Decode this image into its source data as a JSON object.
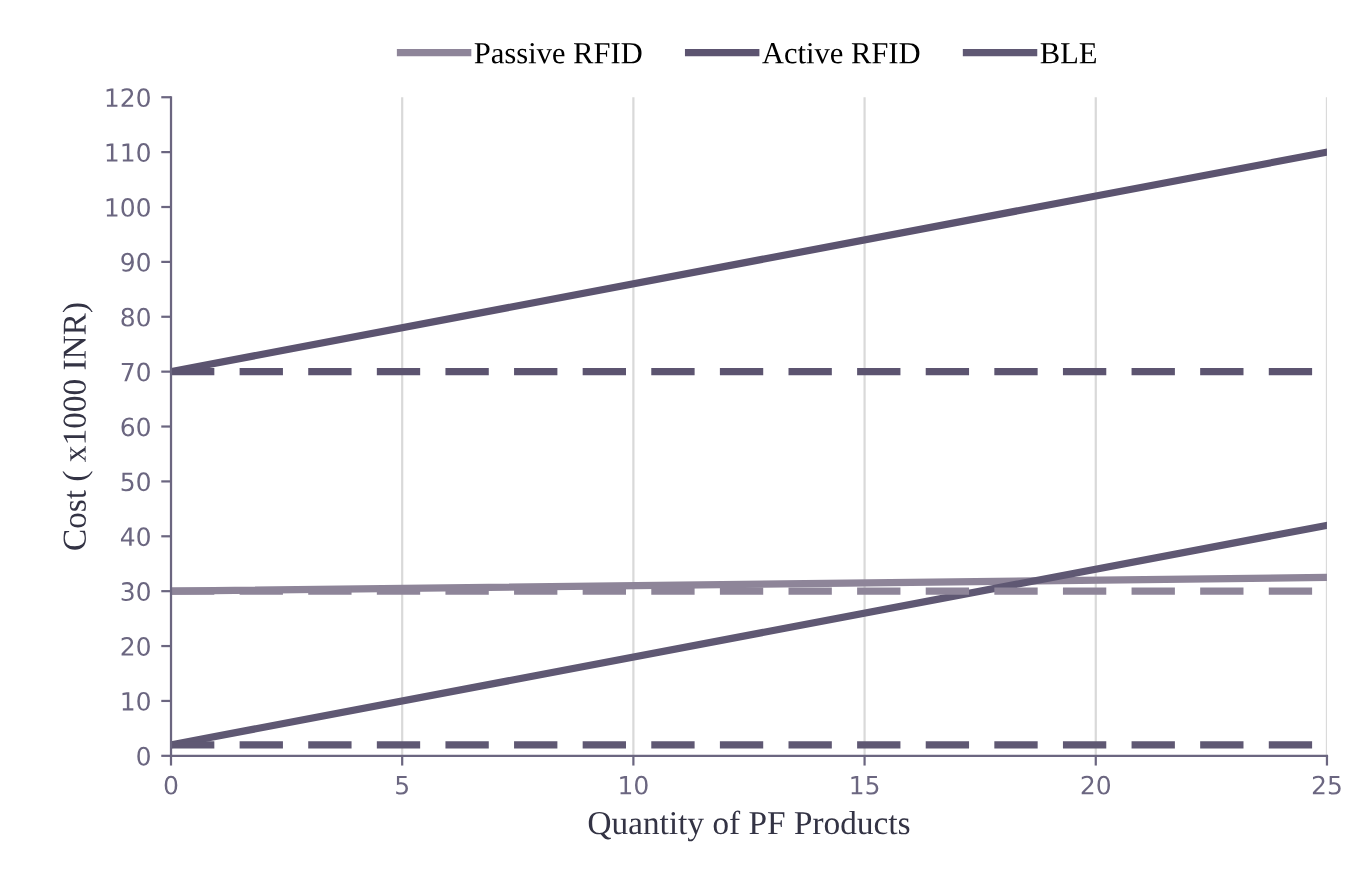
{
  "chart_data": {
    "type": "line",
    "xlabel": "Quantity of PF Products",
    "ylabel": "Cost ( x1000 INR)",
    "x": [
      0,
      25
    ],
    "xlim": [
      0,
      25
    ],
    "xticks": [
      0,
      5,
      10,
      15,
      20,
      25
    ],
    "ylim": [
      0,
      120
    ],
    "yticks": [
      0,
      10,
      20,
      30,
      40,
      50,
      60,
      70,
      80,
      90,
      100,
      110,
      120
    ],
    "grid": "x",
    "legend": "top",
    "marker": "none",
    "series": [
      {
        "name": "Passive RFID",
        "color": "#8e8599",
        "values": [
          30,
          32.5
        ],
        "line_style": "solid"
      },
      {
        "name": "Active RFID",
        "color": "#5c5470",
        "values": [
          70,
          110
        ],
        "line_style": "solid"
      },
      {
        "name": "BLE",
        "color": "#5f5873",
        "values": [
          2,
          42
        ],
        "line_style": "solid"
      },
      {
        "color": "#8e8599",
        "values": [
          30,
          30
        ],
        "line_style": "dashed"
      },
      {
        "color": "#5c5470",
        "values": [
          70,
          70
        ],
        "line_style": "dashed"
      },
      {
        "color": "#5f5873",
        "values": [
          2,
          2
        ],
        "line_style": "dashed"
      }
    ]
  }
}
